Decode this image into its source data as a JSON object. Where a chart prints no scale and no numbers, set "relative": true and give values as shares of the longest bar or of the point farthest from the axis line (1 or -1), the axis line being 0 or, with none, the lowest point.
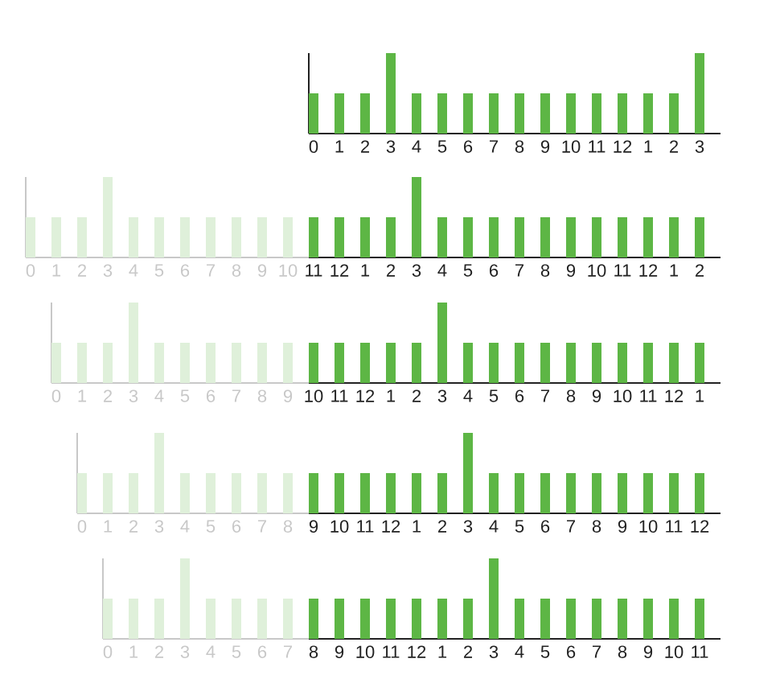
{
  "chart_data": [
    {
      "type": "bar",
      "relative": true,
      "color": "#5db645",
      "categories": [
        "0",
        "1",
        "2",
        "3",
        "4",
        "5",
        "6",
        "7",
        "8",
        "9",
        "10",
        "11",
        "12",
        "1",
        "2",
        "3"
      ],
      "values": [
        0.5,
        0.5,
        0.5,
        1,
        0.5,
        0.5,
        0.5,
        0.5,
        0.5,
        0.5,
        0.5,
        0.5,
        0.5,
        0.5,
        0.5,
        1
      ]
    },
    {
      "type": "bar",
      "relative": true,
      "color": "#dff0da",
      "categories": [
        "0",
        "1",
        "2",
        "3",
        "4",
        "5",
        "6",
        "7",
        "8",
        "9",
        "10"
      ],
      "values": [
        0.5,
        0.5,
        0.5,
        1,
        0.5,
        0.5,
        0.5,
        0.5,
        0.5,
        0.5,
        0.5
      ]
    },
    {
      "type": "bar",
      "relative": true,
      "color": "#5db645",
      "categories": [
        "11",
        "12",
        "1",
        "2",
        "3",
        "4",
        "5",
        "6",
        "7",
        "8",
        "9",
        "10",
        "11",
        "12",
        "1",
        "2"
      ],
      "values": [
        0.5,
        0.5,
        0.5,
        0.5,
        1,
        0.5,
        0.5,
        0.5,
        0.5,
        0.5,
        0.5,
        0.5,
        0.5,
        0.5,
        0.5,
        0.5
      ]
    },
    {
      "type": "bar",
      "relative": true,
      "color": "#dff0da",
      "categories": [
        "0",
        "1",
        "2",
        "3",
        "4",
        "5",
        "6",
        "7",
        "8",
        "9"
      ],
      "values": [
        0.5,
        0.5,
        0.5,
        1,
        0.5,
        0.5,
        0.5,
        0.5,
        0.5,
        0.5
      ]
    },
    {
      "type": "bar",
      "relative": true,
      "color": "#5db645",
      "categories": [
        "10",
        "11",
        "12",
        "1",
        "2",
        "3",
        "4",
        "5",
        "6",
        "7",
        "8",
        "9",
        "10",
        "11",
        "12",
        "1"
      ],
      "values": [
        0.5,
        0.5,
        0.5,
        0.5,
        0.5,
        1,
        0.5,
        0.5,
        0.5,
        0.5,
        0.5,
        0.5,
        0.5,
        0.5,
        0.5,
        0.5
      ]
    },
    {
      "type": "bar",
      "relative": true,
      "color": "#dff0da",
      "categories": [
        "0",
        "1",
        "2",
        "3",
        "4",
        "5",
        "6",
        "7",
        "8"
      ],
      "values": [
        0.5,
        0.5,
        0.5,
        1,
        0.5,
        0.5,
        0.5,
        0.5,
        0.5
      ]
    },
    {
      "type": "bar",
      "relative": true,
      "color": "#5db645",
      "categories": [
        "9",
        "10",
        "11",
        "12",
        "1",
        "2",
        "3",
        "4",
        "5",
        "6",
        "7",
        "8",
        "9",
        "10",
        "11",
        "12"
      ],
      "values": [
        0.5,
        0.5,
        0.5,
        0.5,
        0.5,
        0.5,
        1,
        0.5,
        0.5,
        0.5,
        0.5,
        0.5,
        0.5,
        0.5,
        0.5,
        0.5
      ]
    },
    {
      "type": "bar",
      "relative": true,
      "color": "#dff0da",
      "categories": [
        "0",
        "1",
        "2",
        "3",
        "4",
        "5",
        "6",
        "7"
      ],
      "values": [
        0.5,
        0.5,
        0.5,
        1,
        0.5,
        0.5,
        0.5,
        0.5
      ]
    },
    {
      "type": "bar",
      "relative": true,
      "color": "#5db645",
      "categories": [
        "8",
        "9",
        "10",
        "11",
        "12",
        "1",
        "2",
        "3",
        "4",
        "5",
        "6",
        "7",
        "8",
        "9",
        "10",
        "11"
      ],
      "values": [
        0.5,
        0.5,
        0.5,
        0.5,
        0.5,
        0.5,
        0.5,
        1,
        0.5,
        0.5,
        0.5,
        0.5,
        0.5,
        0.5,
        0.5,
        0.5
      ]
    }
  ]
}
